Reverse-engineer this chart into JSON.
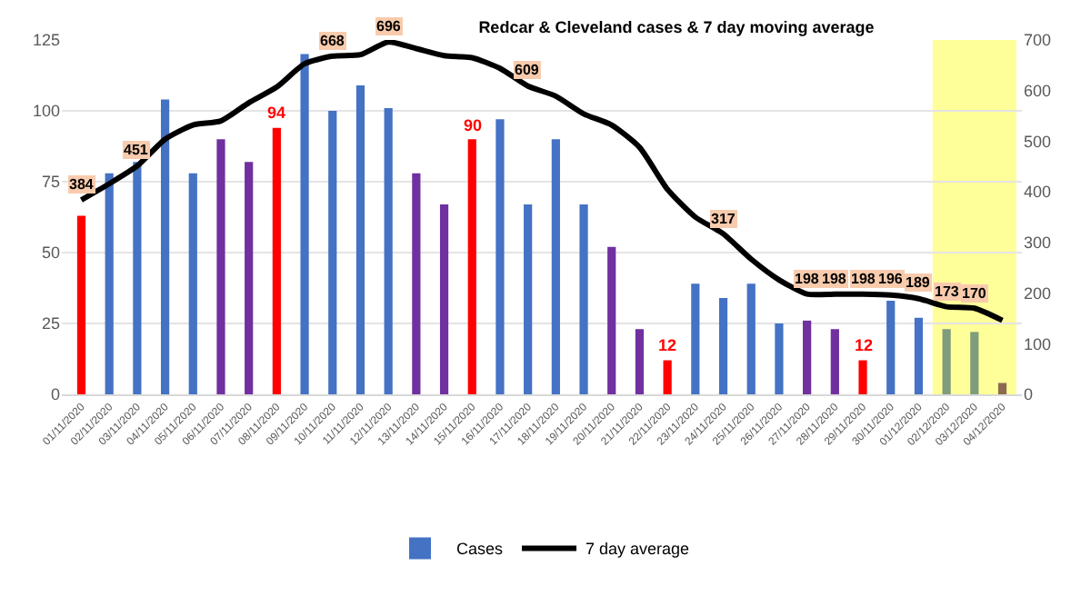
{
  "chart_data": {
    "type": "bar",
    "title": "Redcar & Cleveland cases & 7 day moving average",
    "categories": [
      "01/11/2020",
      "02/11/2020",
      "03/11/2020",
      "04/11/2020",
      "05/11/2020",
      "06/11/2020",
      "07/11/2020",
      "08/11/2020",
      "09/11/2020",
      "10/11/2020",
      "11/11/2020",
      "12/11/2020",
      "13/11/2020",
      "14/11/2020",
      "15/11/2020",
      "16/11/2020",
      "17/11/2020",
      "18/11/2020",
      "19/11/2020",
      "20/11/2020",
      "21/11/2020",
      "22/11/2020",
      "23/11/2020",
      "24/11/2020",
      "25/11/2020",
      "26/11/2020",
      "27/11/2020",
      "28/11/2020",
      "29/11/2020",
      "30/11/2020",
      "01/12/2020",
      "02/12/2020",
      "03/12/2020",
      "04/12/2020"
    ],
    "series": [
      {
        "name": "Cases",
        "color": "#4472c4",
        "values": [
          63,
          78,
          82,
          104,
          78,
          90,
          82,
          94,
          120,
          100,
          109,
          101,
          78,
          67,
          90,
          97,
          67,
          90,
          67,
          52,
          23,
          12,
          39,
          34,
          39,
          25,
          26,
          23,
          12,
          33,
          27,
          23,
          22,
          4
        ],
        "colors": [
          "#ff0000",
          "#4472c4",
          "#4472c4",
          "#4472c4",
          "#4472c4",
          "#7030a0",
          "#7030a0",
          "#ff0000",
          "#4472c4",
          "#4472c4",
          "#4472c4",
          "#4472c4",
          "#7030a0",
          "#7030a0",
          "#ff0000",
          "#4472c4",
          "#4472c4",
          "#4472c4",
          "#4472c4",
          "#7030a0",
          "#7030a0",
          "#ff0000",
          "#4472c4",
          "#4472c4",
          "#4472c4",
          "#4472c4",
          "#7030a0",
          "#7030a0",
          "#ff0000",
          "#4472c4",
          "#4472c4",
          "#7f9c7c",
          "#7f9c7c",
          "#8c6a50"
        ],
        "value_labels": [
          null,
          null,
          null,
          null,
          null,
          null,
          null,
          "94",
          null,
          null,
          null,
          null,
          null,
          null,
          "90",
          null,
          null,
          null,
          null,
          null,
          null,
          "12",
          null,
          null,
          null,
          null,
          null,
          null,
          "12",
          null,
          null,
          null,
          null,
          null
        ]
      },
      {
        "name": "7 day average",
        "type": "line",
        "axis": "y2",
        "color": "#000000",
        "values": [
          384,
          416,
          451,
          504,
          532,
          540,
          576,
          607,
          653,
          668,
          671,
          696,
          683,
          669,
          665,
          644,
          609,
          589,
          554,
          532,
          488,
          405,
          350,
          317,
          267,
          226,
          198,
          198,
          198,
          196,
          189,
          173,
          170,
          146
        ],
        "value_labels": [
          "384",
          null,
          "451",
          null,
          null,
          null,
          null,
          null,
          null,
          "668",
          null,
          "696",
          null,
          null,
          null,
          null,
          "609",
          null,
          null,
          null,
          null,
          null,
          null,
          "317",
          null,
          null,
          "198",
          "198",
          "198",
          "196",
          "189",
          "173",
          "170",
          null
        ]
      }
    ],
    "ylim": [
      0,
      125
    ],
    "yticks": [
      0,
      25,
      50,
      75,
      100,
      125
    ],
    "y2lim": [
      0,
      700
    ],
    "y2ticks": [
      0,
      100,
      200,
      300,
      400,
      500,
      600,
      700
    ],
    "bands": [
      {
        "axis": "x",
        "from": "02/12/2020",
        "to": "04/12/2020",
        "color": "#ffff99"
      }
    ],
    "grid": "y",
    "legend": "bottom",
    "marker": "none",
    "line_style": "solid"
  }
}
